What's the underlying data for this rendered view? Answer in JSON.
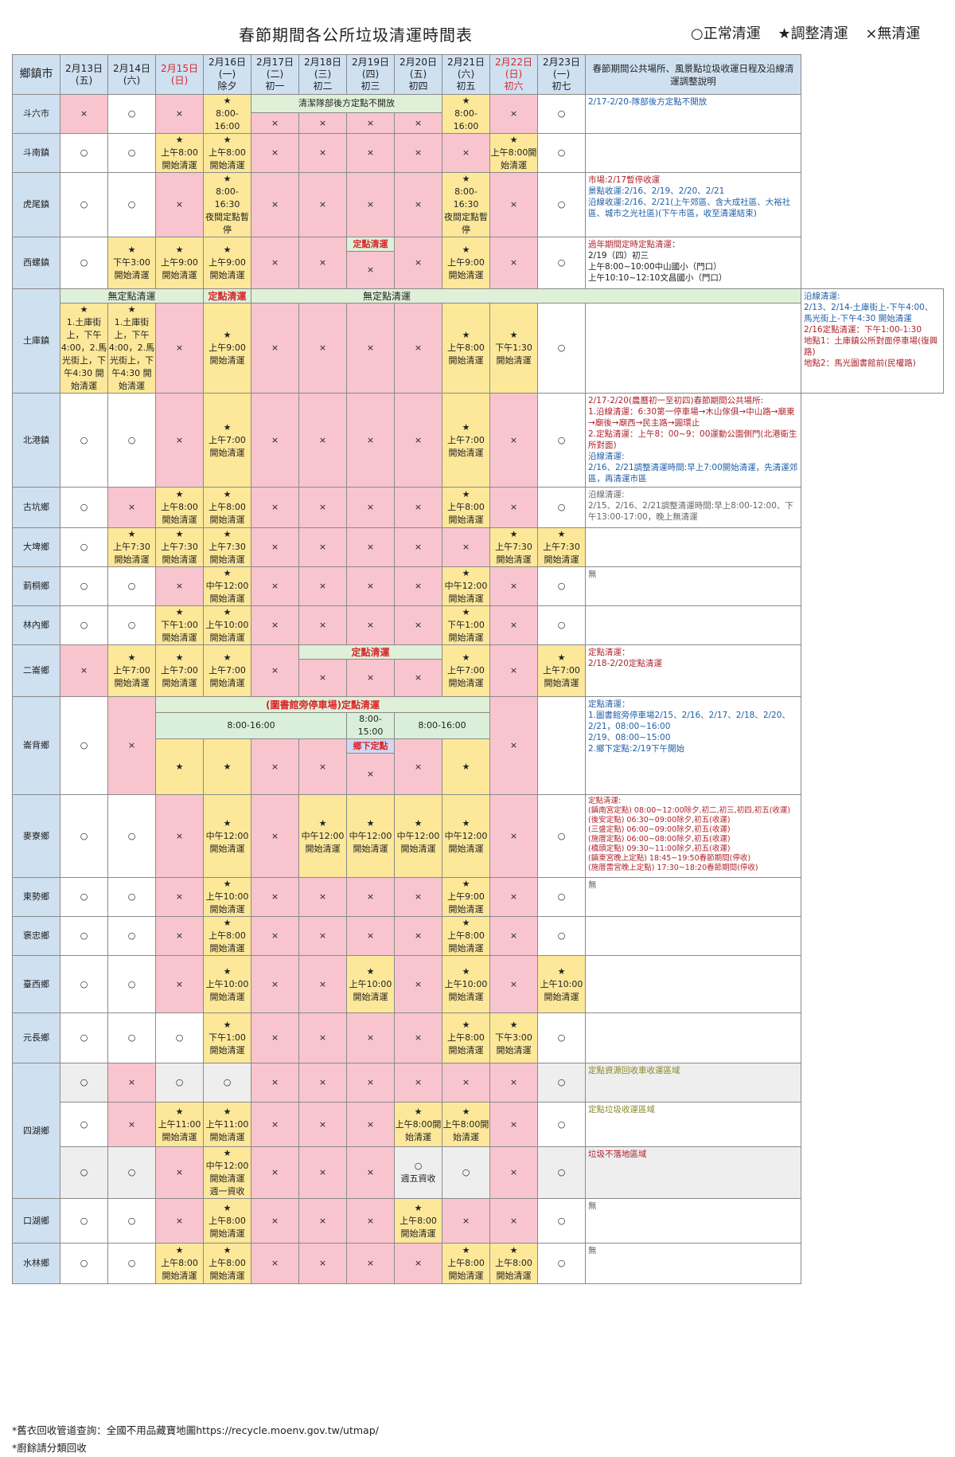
{
  "title": "春節期間各公所垃圾清運時間表",
  "legend": {
    "normal": "○正常清運",
    "adjust": "★調整清運",
    "none": "×無清運"
  },
  "header": {
    "town": "鄉鎮市",
    "d13": [
      "2月13日",
      "(五)"
    ],
    "d14": [
      "2月14日",
      "(六)"
    ],
    "d15": [
      "2月15日",
      "(日)"
    ],
    "d16": [
      "2月16日",
      "(一)",
      "除夕"
    ],
    "d17": [
      "2月17日",
      "(二)",
      "初一"
    ],
    "d18": [
      "2月18日",
      "(三)",
      "初二"
    ],
    "d19": [
      "2月19日",
      "(四)",
      "初三"
    ],
    "d20": [
      "2月20日",
      "(五)",
      "初四"
    ],
    "d21": [
      "2月21日",
      "(六)",
      "初五"
    ],
    "d22": [
      "2月22日",
      "(日)",
      "初六"
    ],
    "d23": [
      "2月23日",
      "(一)",
      "初七"
    ],
    "note": "春節期間公共場所、風景點垃圾收運日程及沿線清運調整說明"
  },
  "sym": {
    "o": "○",
    "x": "×",
    "s": "★"
  },
  "t": {
    "a8_16": "8:00-16:00",
    "a8_1630": "8:00-16:30",
    "night_stop": "夜間定點暫停",
    "am8": "上午8:00",
    "am7": "上午7:00",
    "am730": "上午7:30",
    "am9": "上午9:00",
    "am10": "上午10:00",
    "am11": "上午11:00",
    "noon12": "中午12:00",
    "pm1": "下午1:00",
    "pm130": "下午1:30",
    "pm3": "下午3:00",
    "start": "開始清運",
    "am8start": "上午8:00開始清運",
    "weekone": "週一資收",
    "weekfive": "週五資收"
  },
  "bands": {
    "douliu": "清潔隊部後方定點不開放",
    "xiluo": "定點清運",
    "tuku_a": "無定點清運",
    "tuku_b": "定點清運",
    "tuku_c": "無定點清運",
    "tuku_dec": "1.土庫街上，下午4:00，2.馬光街上，下午4:30 開始清運",
    "erlun": "定點清運",
    "lunbei": "(圖書館旁停車場)定點清運",
    "lunbei_t1": "8:00-16:00",
    "lunbei_t2": "8:00-15:00",
    "lunbei_t3": "8:00-16:00",
    "lunbei_sub": "鄉下定點"
  },
  "towns": [
    "斗六市",
    "斗南鎮",
    "虎尾鎮",
    "西螺鎮",
    "土庫鎮",
    "北港鎮",
    "古坑鄉",
    "大埤鄉",
    "莿桐鄉",
    "林內鄉",
    "二崙鄉",
    "崙背鄉",
    "麥寮鄉",
    "東勢鄉",
    "褒忠鄉",
    "臺西鄉",
    "元長鄉",
    "四湖鄉",
    "口湖鄉",
    "水林鄉"
  ],
  "notes": {
    "douliu": "2/17-2/20-隊部後方定點不開放",
    "huwei": [
      "市場:2/17暫停收運",
      "景點收運:2/16、2/19、2/20、2/21",
      "沿線收運:2/16、2/21(上午郊區、含大成社區、大裕社區、城市之光社區)(下午市區，收至清運結束)"
    ],
    "xiluo": [
      "過年期間定時定點清運：",
      "2/19（四）初三",
      "上午8:00~10:00中山國小（門口）",
      "上午10:10~12:10文昌國小（門口）"
    ],
    "tuku": [
      "沿線清運:",
      "2/13、2/14-土庫街上-下午4:00、馬光街上-下午4:30 開始清運",
      "2/16定點清運：下午1:00-1:30",
      "地點1：土庫鎮公所對面停車場(復興路)",
      "地點2：馬光圖書館前(民權路)"
    ],
    "beigang": [
      "2/17-2/20(農曆初一至初四)春節期間公共場所:",
      "1.沿線清運：6:30第一停車場→木山傢俱→中山路→廟東→廟後→廟西→民主路→圓環止",
      "2.定點清運：上午8：00~9：00運動公園側門(北港衛生所對面)",
      "沿線清運:",
      "2/16、2/21調整清運時間:早上7:00開始清運，先清運郊區，再清運市區"
    ],
    "gukeng": [
      "沿線清運:",
      "2/15、2/16、2/21調整清運時間:早上8:00-12:00、下午13:00-17:00，晚上無清運"
    ],
    "citong": "無",
    "erlun": [
      "定點清運：",
      "2/18-2/20定點清運"
    ],
    "lunbei": [
      "定點清運：",
      "1.圖書館旁停車場2/15、2/16、2/17、2/18、2/20、2/21，08:00~16:00",
      "2/19、08:00~15:00",
      "2.鄉下定點:2/19下午開始"
    ],
    "mailiao": [
      "定點清運:",
      "(鎮南宮定點) 08:00~12:00除夕,初二,初三,初四,初五(收運)",
      "(後安定點) 06:30~09:00除夕,初五(收運)",
      "(三盛定點) 06:00~09:00除夕,初五(收運)",
      "(施厝定點) 06:00~08:00除夕,初五(收運)",
      "(橋頭定點) 09:30~11:00除夕,初五(收運)",
      "(鎮東宮晚上定點) 18:45~19:50春節期間(停收)",
      "(施厝雷宮晚上定點) 17:30~18:20春節期間(停收)"
    ],
    "dongshi": "無",
    "sihu1": "定點資源回收車收運區域",
    "sihu2": "定點垃圾收運區域",
    "sihu3": "垃圾不落地區域",
    "kouhu": "無",
    "shuilin": "無"
  },
  "footer": [
    "*舊衣回收管道查詢：全國不用品藏寶地圖https://recycle.moenv.gov.tw/utmap/",
    "*廚餘請分類回收"
  ],
  "colors": {
    "adjust_yellow": "#fde89a",
    "none_pink": "#f8c5cf",
    "header_blue": "#cfe0f1",
    "band_green": "#dff0d8",
    "holiday_red": "#d8262b"
  }
}
